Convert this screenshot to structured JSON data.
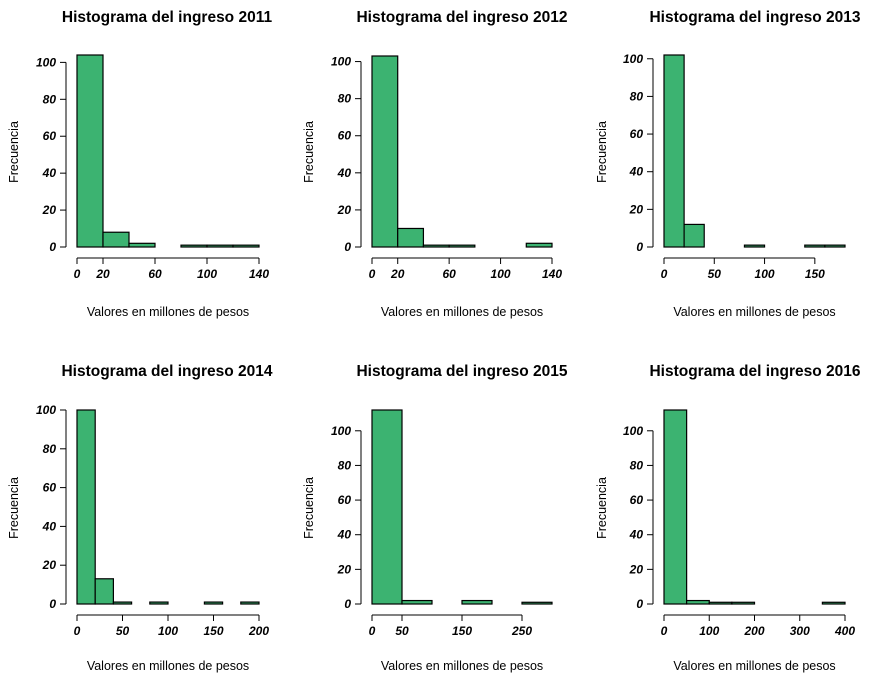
{
  "colors": {
    "bar_fill": "#3cb371",
    "bar_stroke": "#000000"
  },
  "chart_data": [
    {
      "type": "bar",
      "title": "Histograma del ingreso 2011",
      "xlabel": "Valores en millones de pesos",
      "ylabel": "Frecuencia",
      "bins": [
        [
          0,
          20
        ],
        [
          20,
          40
        ],
        [
          40,
          60
        ],
        [
          60,
          80
        ],
        [
          80,
          100
        ],
        [
          100,
          120
        ],
        [
          120,
          140
        ]
      ],
      "values": [
        104,
        8,
        2,
        0,
        1,
        1,
        1
      ],
      "xlim": [
        0,
        140
      ],
      "ylim": [
        0,
        104
      ],
      "xticks": [
        0,
        20,
        60,
        100,
        140
      ],
      "yticks": [
        0,
        20,
        40,
        60,
        80,
        100
      ],
      "grid": false
    },
    {
      "type": "bar",
      "title": "Histograma del ingreso 2012",
      "xlabel": "Valores en millones de pesos",
      "ylabel": "Frecuencia",
      "bins": [
        [
          0,
          20
        ],
        [
          20,
          40
        ],
        [
          40,
          60
        ],
        [
          60,
          80
        ],
        [
          80,
          100
        ],
        [
          100,
          120
        ],
        [
          120,
          140
        ]
      ],
      "values": [
        103,
        10,
        1,
        1,
        0,
        0,
        2
      ],
      "xlim": [
        0,
        140
      ],
      "ylim": [
        0,
        103
      ],
      "xticks": [
        0,
        20,
        60,
        100,
        140
      ],
      "yticks": [
        0,
        20,
        40,
        60,
        80,
        100
      ],
      "grid": false
    },
    {
      "type": "bar",
      "title": "Histograma del ingreso 2013",
      "xlabel": "Valores en millones de pesos",
      "ylabel": "Frecuencia",
      "bins": [
        [
          0,
          20
        ],
        [
          20,
          40
        ],
        [
          40,
          60
        ],
        [
          60,
          80
        ],
        [
          80,
          100
        ],
        [
          100,
          120
        ],
        [
          120,
          140
        ],
        [
          140,
          160
        ],
        [
          160,
          180
        ]
      ],
      "values": [
        102,
        12,
        0,
        0,
        1,
        0,
        0,
        1,
        1
      ],
      "xlim": [
        0,
        180
      ],
      "ylim": [
        0,
        102
      ],
      "xticks": [
        0,
        50,
        100,
        150
      ],
      "yticks": [
        0,
        20,
        40,
        60,
        80,
        100
      ],
      "grid": false
    },
    {
      "type": "bar",
      "title": "Histograma del ingreso 2014",
      "xlabel": "Valores en millones de pesos",
      "ylabel": "Frecuencia",
      "bins": [
        [
          0,
          20
        ],
        [
          20,
          40
        ],
        [
          40,
          60
        ],
        [
          60,
          80
        ],
        [
          80,
          100
        ],
        [
          100,
          120
        ],
        [
          120,
          140
        ],
        [
          140,
          160
        ],
        [
          160,
          180
        ],
        [
          180,
          200
        ]
      ],
      "values": [
        100,
        13,
        1,
        0,
        1,
        0,
        0,
        1,
        0,
        1
      ],
      "xlim": [
        0,
        200
      ],
      "ylim": [
        0,
        100
      ],
      "xticks": [
        0,
        50,
        100,
        150,
        200
      ],
      "yticks": [
        0,
        20,
        40,
        60,
        80,
        100
      ],
      "grid": false
    },
    {
      "type": "bar",
      "title": "Histograma del ingreso 2015",
      "xlabel": "Valores en millones de pesos",
      "ylabel": "Frecuencia",
      "bins": [
        [
          0,
          50
        ],
        [
          50,
          100
        ],
        [
          100,
          150
        ],
        [
          150,
          200
        ],
        [
          200,
          250
        ],
        [
          250,
          300
        ]
      ],
      "values": [
        112,
        2,
        0,
        2,
        0,
        1
      ],
      "xlim": [
        0,
        300
      ],
      "ylim": [
        0,
        112
      ],
      "xticks": [
        0,
        50,
        150,
        250
      ],
      "yticks": [
        0,
        20,
        40,
        60,
        80,
        100
      ],
      "grid": false
    },
    {
      "type": "bar",
      "title": "Histograma del ingreso 2016",
      "xlabel": "Valores en millones de pesos",
      "ylabel": "Frecuencia",
      "bins": [
        [
          0,
          50
        ],
        [
          50,
          100
        ],
        [
          100,
          150
        ],
        [
          150,
          200
        ],
        [
          200,
          250
        ],
        [
          250,
          300
        ],
        [
          300,
          350
        ],
        [
          350,
          400
        ]
      ],
      "values": [
        112,
        2,
        1,
        1,
        0,
        0,
        0,
        1
      ],
      "xlim": [
        0,
        400
      ],
      "ylim": [
        0,
        112
      ],
      "xticks": [
        0,
        100,
        200,
        300,
        400
      ],
      "yticks": [
        0,
        20,
        40,
        60,
        80,
        100
      ],
      "grid": false
    }
  ]
}
